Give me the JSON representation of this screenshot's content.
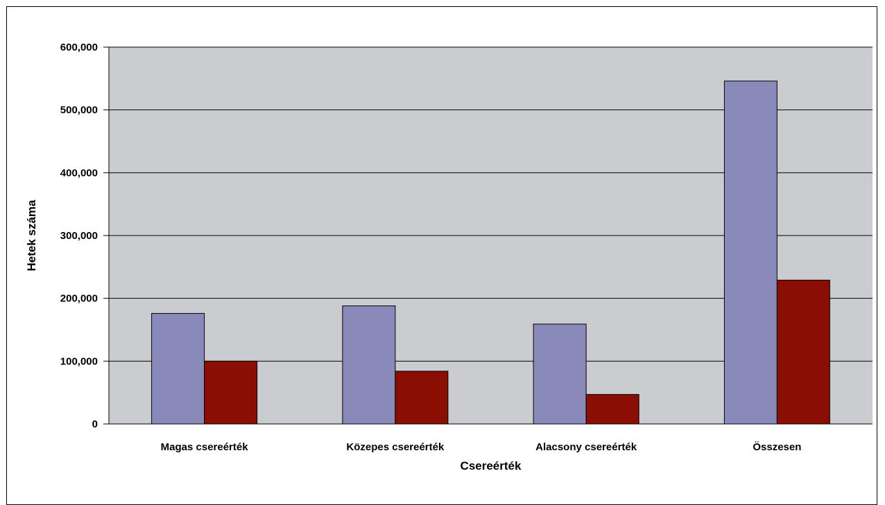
{
  "chart_data": {
    "type": "bar",
    "title": "",
    "xlabel": "Csereérték",
    "ylabel": "Hetek száma",
    "categories": [
      "Magas csereérték",
      "Közepes csereérték",
      "Alacsony csereérték",
      "Összesen"
    ],
    "series": [
      {
        "values": [
          176000,
          188000,
          159000,
          546000
        ],
        "color": "#8a8aba"
      },
      {
        "values": [
          100000,
          84000,
          47000,
          229000
        ],
        "color": "#8b0e05"
      }
    ],
    "ylim": [
      0,
      600000
    ],
    "yticks": [
      0,
      100000,
      200000,
      300000,
      400000,
      500000,
      600000
    ],
    "ytick_labels": [
      "0",
      "100,000",
      "200,000",
      "300,000",
      "400,000",
      "500,000",
      "600,000"
    ],
    "grid": true,
    "legend": "none",
    "plot_background": "#cbcccf"
  }
}
